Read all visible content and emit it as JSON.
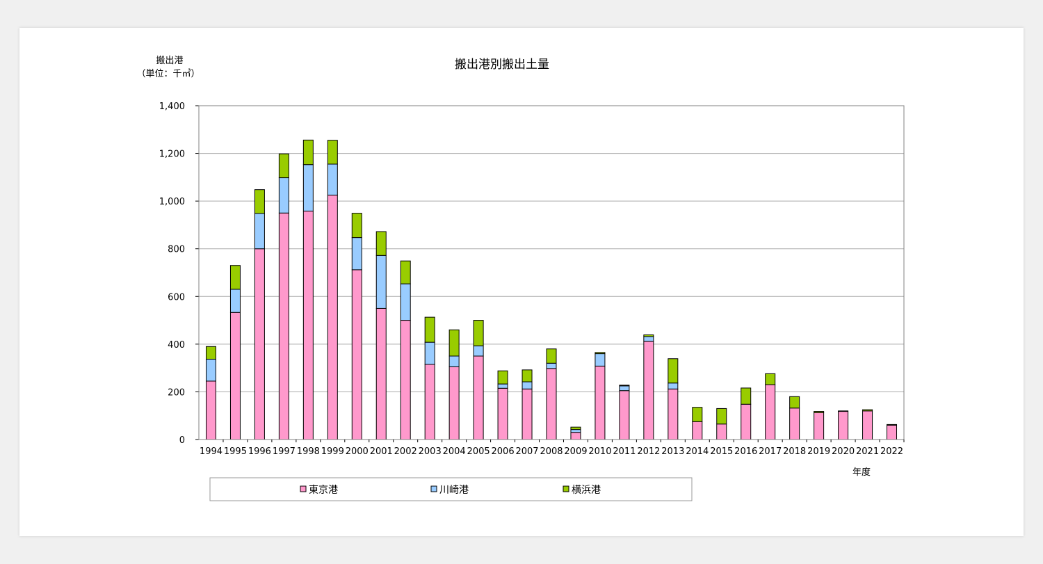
{
  "chart_data": {
    "type": "bar",
    "stacked": true,
    "title": "搬出港別搬出土量",
    "ylabel_line1": "搬出港",
    "ylabel_line2": "（単位：千㎥）",
    "xlabel": "年度",
    "ylim": [
      0,
      1400
    ],
    "yticks": [
      0,
      200,
      400,
      600,
      800,
      1000,
      1200,
      1400
    ],
    "ytick_labels": [
      "0",
      "200",
      "400",
      "600",
      "800",
      "1,000",
      "1,200",
      "1,400"
    ],
    "grid": true,
    "legend_position": "bottom",
    "categories": [
      "1994",
      "1995",
      "1996",
      "1997",
      "1998",
      "1999",
      "2000",
      "2001",
      "2002",
      "2003",
      "2004",
      "2005",
      "2006",
      "2007",
      "2008",
      "2009",
      "2010",
      "2011",
      "2012",
      "2013",
      "2014",
      "2015",
      "2016",
      "2017",
      "2018",
      "2019",
      "2020",
      "2021",
      "2022"
    ],
    "series": [
      {
        "name": "東京港",
        "color": "#ff99cc",
        "values": [
          245,
          533,
          800,
          950,
          958,
          1025,
          712,
          550,
          500,
          315,
          305,
          350,
          215,
          212,
          298,
          30,
          308,
          205,
          412,
          212,
          75,
          65,
          148,
          230,
          132,
          113,
          118,
          120,
          60
        ]
      },
      {
        "name": "川崎港",
        "color": "#99ccff",
        "values": [
          92,
          97,
          148,
          148,
          195,
          130,
          135,
          222,
          153,
          93,
          45,
          43,
          18,
          30,
          22,
          12,
          52,
          20,
          20,
          25,
          0,
          0,
          0,
          0,
          0,
          0,
          0,
          0,
          0
        ]
      },
      {
        "name": "横浜港",
        "color": "#99cc00",
        "values": [
          53,
          100,
          100,
          100,
          103,
          100,
          102,
          100,
          96,
          105,
          110,
          107,
          55,
          50,
          60,
          10,
          5,
          3,
          7,
          102,
          60,
          65,
          68,
          46,
          48,
          5,
          2,
          5,
          3
        ]
      }
    ]
  }
}
